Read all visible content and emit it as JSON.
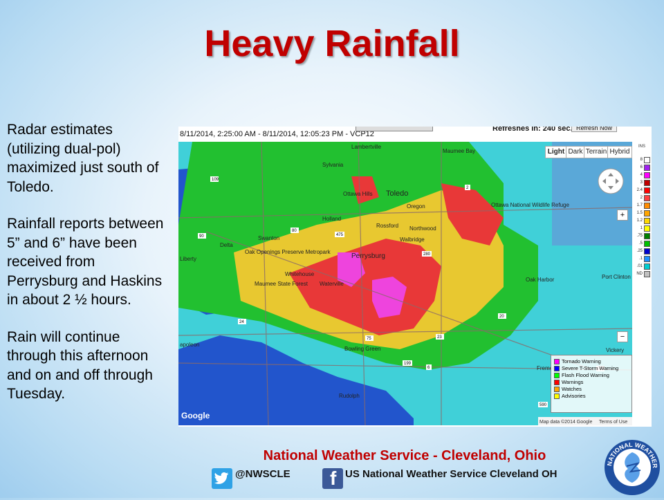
{
  "title": "Heavy Rainfall",
  "paragraphs": [
    "Radar estimates (utilizing dual-pol) maximized just south of Toledo.",
    "Rainfall reports between 5” and 6” have been received from Perrysburg and Haskins in about 2 ½ hours.",
    "Rain will continue through this afternoon and on and off through Tuesday."
  ],
  "radar": {
    "timestamp": "8/11/2014, 2:25:00 AM - 8/11/2014, 12:05:23 PM - VCP12",
    "refresh_text": "Refreshes in: 240 sec.",
    "refresh_button": "Refresh Now",
    "map_types": [
      "Light",
      "Dark",
      "Terrain",
      "Hybrid"
    ],
    "legend_title": "INS",
    "legend": [
      {
        "label": "8",
        "color": "#ffffff"
      },
      {
        "label": "6",
        "color": "#a020f0"
      },
      {
        "label": "4",
        "color": "#ff00ff"
      },
      {
        "label": "3",
        "color": "#c00000"
      },
      {
        "label": "2.4",
        "color": "#ff0000"
      },
      {
        "label": "2",
        "color": "#ff4040"
      },
      {
        "label": "1.7",
        "color": "#ff8c00"
      },
      {
        "label": "1.5",
        "color": "#ffa500"
      },
      {
        "label": "1.2",
        "color": "#ffd700"
      },
      {
        "label": "1",
        "color": "#ffff00"
      },
      {
        "label": ".75",
        "color": "#008000"
      },
      {
        "label": ".5",
        "color": "#00c000"
      },
      {
        "label": ".25",
        "color": "#0000cd"
      },
      {
        "label": ".1",
        "color": "#1e90ff"
      },
      {
        "label": ".01",
        "color": "#00ced1"
      },
      {
        "label": "ND",
        "color": "#c0c0c0"
      }
    ],
    "warnings": [
      {
        "label": "Tornado Warning",
        "color": "#ff00ff"
      },
      {
        "label": "Severe T-Storm Warning",
        "color": "#0000ff"
      },
      {
        "label": "Flash Flood Warning",
        "color": "#00ff00"
      },
      {
        "label": "Warnings",
        "color": "#ff0000"
      },
      {
        "label": "Watches",
        "color": "#ffa500"
      },
      {
        "label": "Advisories",
        "color": "#ffff00"
      }
    ],
    "places": [
      "Lambertville",
      "Sylvania",
      "Toledo",
      "Maumee Bay",
      "Ottawa Hills",
      "Oregon",
      "Ottawa National Wildlife Refuge",
      "Holland",
      "Rossford",
      "Northwood",
      "Swanton",
      "Walbridge",
      "Delta",
      "Oak Openings Preserve Metropark",
      "Perrysburg",
      "Whitehouse",
      "Waterville",
      "Maumee State Forest",
      "Oak Harbor",
      "Port Clinton",
      "Bowling Green",
      "Vickery",
      "Fremont",
      "Rudolph",
      "apoleon",
      "Liberty"
    ],
    "roads": [
      "109",
      "475",
      "2",
      "80",
      "90",
      "75",
      "280",
      "24",
      "20",
      "6",
      "199",
      "23",
      "53",
      "590"
    ],
    "google": "Google",
    "attribution": "Map data ©2014 Google",
    "terms": "Terms of Use"
  },
  "footer": {
    "org": "National Weather Service - Cleveland, Ohio",
    "twitter": "@NWSCLE",
    "facebook": "US National Weather Service Cleveland OH",
    "logo_text": "NATIONAL WEATHER SERVICE"
  },
  "colors": {
    "title": "#c00000",
    "footer_org": "#c00000",
    "twitter": "#2fa2e6",
    "facebook": "#3b5998"
  }
}
